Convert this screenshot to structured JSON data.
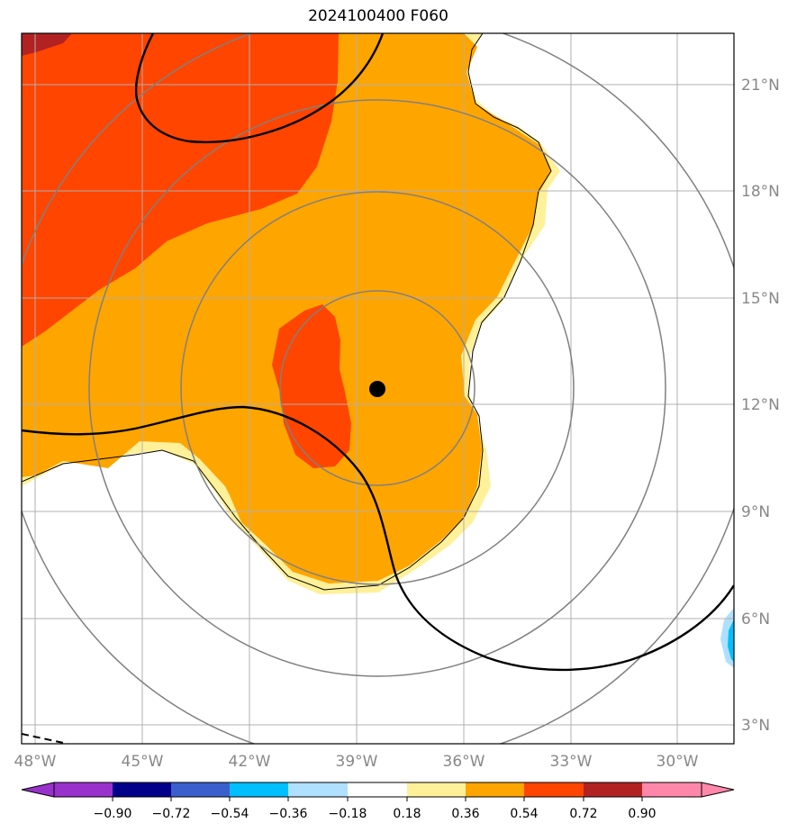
{
  "title": "2024100400 F060",
  "map": {
    "lon_range": [
      -48.5,
      -28.5
    ],
    "lat_range": [
      2.5,
      22.5
    ],
    "lon_ticks": [
      "48°W",
      "45°W",
      "42°W",
      "39°W",
      "36°W",
      "33°W",
      "30°W"
    ],
    "lat_ticks": [
      "3°N",
      "6°N",
      "9°N",
      "12°N",
      "15°N",
      "18°N",
      "21°N"
    ],
    "storm_center": {
      "lon": -38.4,
      "lat": 12.5
    },
    "range_rings": "concentric circles around storm center",
    "colors": {
      "fill_0_18_0_36": "#fff09a",
      "fill_0_36_0_54": "#ffa500",
      "fill_0_54_0_72": "#ff4500",
      "fill_0_72_0_90": "#b22222",
      "fill_neg": "#b0e0ff",
      "fill_neg2": "#00bfff",
      "ring": "#808080",
      "grid": "#b0b0b0"
    }
  },
  "colorbar": {
    "labels": [
      "−0.90",
      "−0.72",
      "−0.54",
      "−0.36",
      "−0.18",
      "0.18",
      "0.36",
      "0.54",
      "0.72",
      "0.90"
    ],
    "colors": [
      "#9932cc",
      "#00008b",
      "#3a5fcd",
      "#00bfff",
      "#b0e0ff",
      "#ffffff",
      "#fff09a",
      "#ffa500",
      "#ff4500",
      "#b22222",
      "#ff88aa"
    ]
  }
}
